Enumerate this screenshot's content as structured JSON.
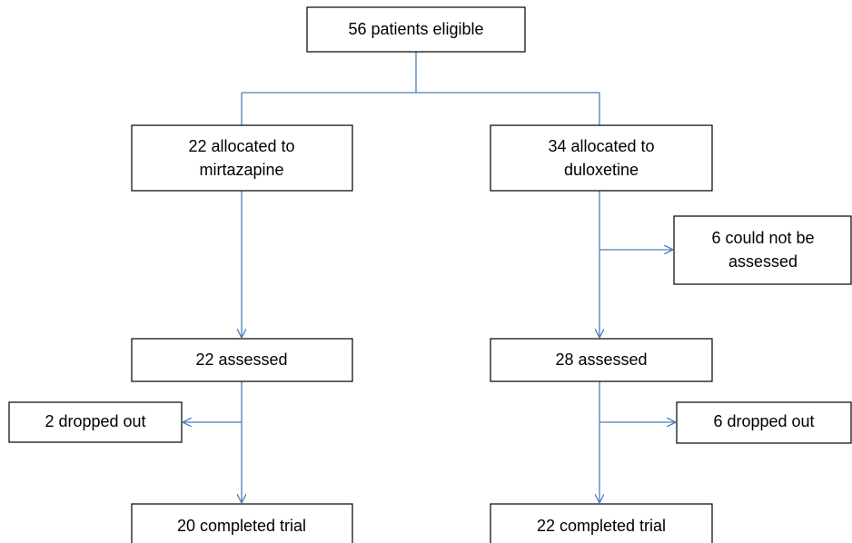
{
  "nodes": [
    {
      "lines": [
        "56 patients eligible"
      ]
    },
    {
      "lines": [
        "22 allocated to",
        "mirtazapine"
      ]
    },
    {
      "lines": [
        "34 allocated to",
        "duloxetine"
      ]
    },
    {
      "lines": [
        "6 could not be",
        "assessed"
      ]
    },
    {
      "lines": [
        "22 assessed"
      ]
    },
    {
      "lines": [
        "28 assessed"
      ]
    },
    {
      "lines": [
        "2 dropped out"
      ]
    },
    {
      "lines": [
        "6 dropped out"
      ]
    },
    {
      "lines": [
        "20 completed trial"
      ]
    },
    {
      "lines": [
        "22 completed trial"
      ]
    }
  ]
}
